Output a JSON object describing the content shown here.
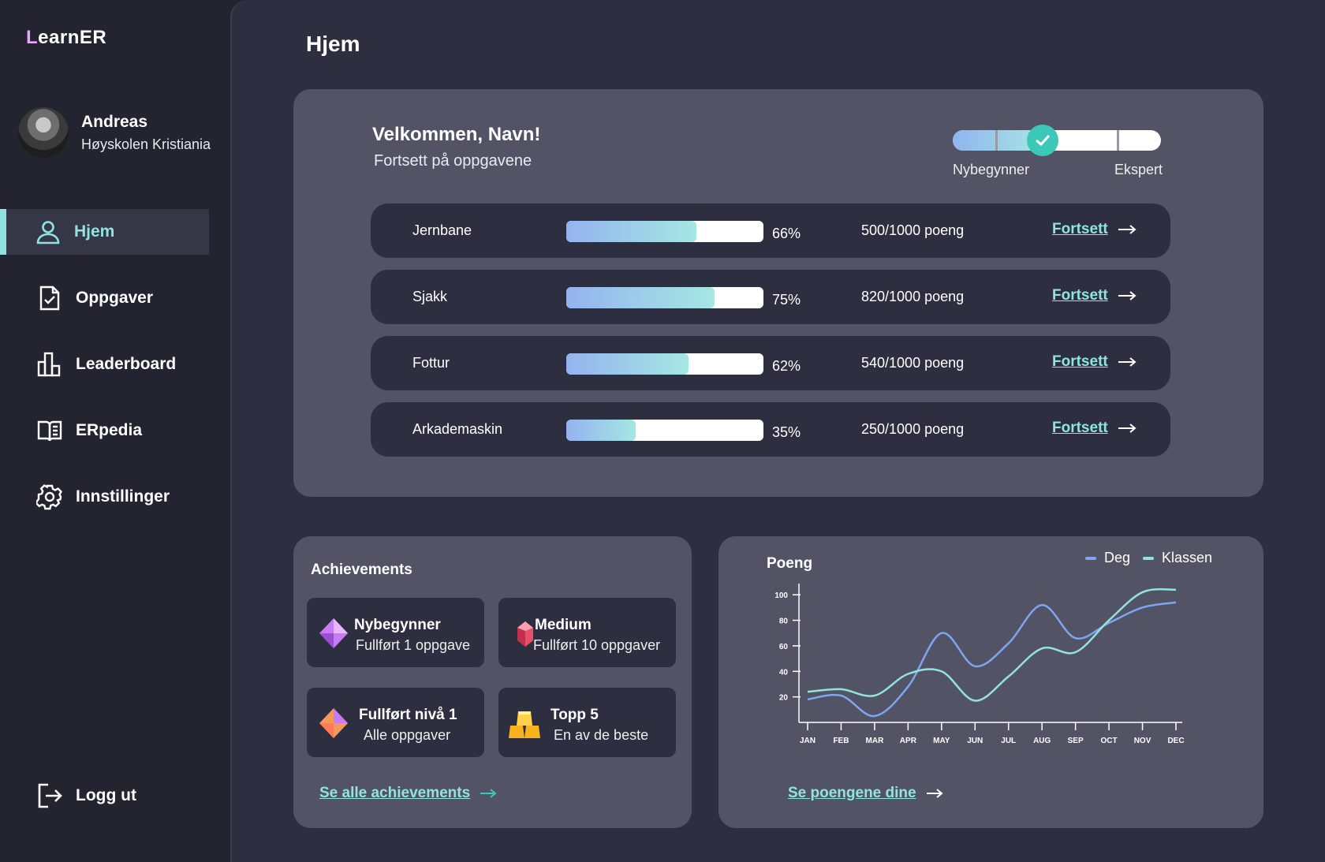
{
  "app": {
    "logo_first": "L",
    "logo_rest": "earnER"
  },
  "profile": {
    "name": "Andreas",
    "school": "Høyskolen Kristiania"
  },
  "nav": {
    "items": [
      {
        "label": "Hjem",
        "icon": "user-icon"
      },
      {
        "label": "Oppgaver",
        "icon": "task-check-icon"
      },
      {
        "label": "Leaderboard",
        "icon": "bar-chart-icon"
      },
      {
        "label": "ERpedia",
        "icon": "book-icon"
      },
      {
        "label": "Innstillinger",
        "icon": "gear-icon"
      }
    ],
    "logout_label": "Logg ut"
  },
  "page": {
    "title": "Hjem"
  },
  "welcome": {
    "title": "Velkommen, Navn!",
    "subtitle": "Fortsett på oppgavene"
  },
  "level": {
    "low_label": "Nybegynner",
    "high_label": "Ekspert",
    "progress": 0.43
  },
  "courses": [
    {
      "name": "Jernbane",
      "percent": 66,
      "percent_label": "66%",
      "points": "500/1000 poeng",
      "link": "Fortsett"
    },
    {
      "name": "Sjakk",
      "percent": 75,
      "percent_label": "75%",
      "points": "820/1000 poeng",
      "link": "Fortsett"
    },
    {
      "name": "Fottur",
      "percent": 62,
      "percent_label": "62%",
      "points": "540/1000 poeng",
      "link": "Fortsett"
    },
    {
      "name": "Arkademaskin",
      "percent": 35,
      "percent_label": "35%",
      "points": "250/1000 poeng",
      "link": "Fortsett"
    }
  ],
  "achievements": {
    "title": "Achievements",
    "items": [
      {
        "name": "Nybegynner",
        "desc": "Fullført 1 oppgave",
        "icon": "purple-diamond-icon"
      },
      {
        "name": "Medium",
        "desc": "Fullført 10 oppgaver",
        "icon": "red-gem-icon"
      },
      {
        "name": "Fullført nivå 1",
        "desc": "Alle oppgaver",
        "icon": "orange-diamond-icon"
      },
      {
        "name": "Topp 5",
        "desc": "En av de beste",
        "icon": "gold-bars-icon"
      }
    ],
    "link": "Se alle achievements"
  },
  "chart_data": {
    "type": "line",
    "title": "Poeng",
    "categories": [
      "JAN",
      "FEB",
      "MAR",
      "APR",
      "MAY",
      "JUN",
      "JUL",
      "AUG",
      "SEP",
      "OCT",
      "NOV",
      "DEC"
    ],
    "yticks": [
      20,
      40,
      60,
      80,
      100
    ],
    "ylim": [
      0,
      110
    ],
    "series": [
      {
        "name": "Deg",
        "color": "#7ea6f0",
        "values": [
          18,
          21,
          5,
          28,
          70,
          44,
          62,
          92,
          66,
          78,
          90,
          94
        ]
      },
      {
        "name": "Klassen",
        "color": "#93e2de",
        "values": [
          24,
          26,
          21,
          38,
          40,
          17,
          36,
          58,
          55,
          80,
          102,
          104
        ]
      }
    ],
    "grid": false,
    "legend": "top-right"
  },
  "chart_link": "Se poengene dine",
  "colors": {
    "accent": "#8fe4e1",
    "background": "#23242f",
    "panel": "#2d2f40",
    "card": "#525466"
  }
}
